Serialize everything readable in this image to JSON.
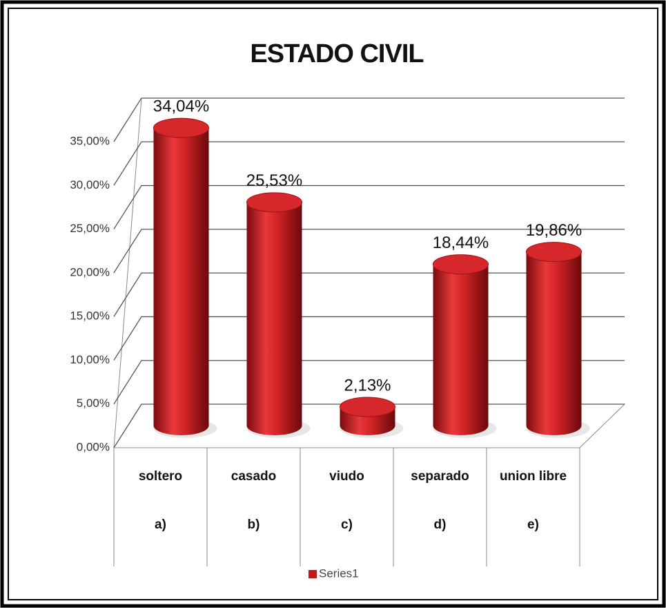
{
  "chart_data": {
    "type": "bar3d",
    "title": "ESTADO CIVIL",
    "categories": [
      "soltero",
      "casado",
      "viudo",
      "separado",
      "union libre"
    ],
    "category_codes": [
      "a)",
      "b)",
      "c)",
      "d)",
      "e)"
    ],
    "series": [
      {
        "name": "Series1",
        "color": "#c0181c",
        "values": [
          34.04,
          25.53,
          2.13,
          18.44,
          19.86
        ],
        "value_labels": [
          "34,04%",
          "25,53%",
          "2,13%",
          "18,44%",
          "19,86%"
        ]
      }
    ],
    "ylim": [
      0,
      35
    ],
    "yticks": [
      {
        "value": 0,
        "label": "0,00%"
      },
      {
        "value": 5,
        "label": "5,00%"
      },
      {
        "value": 10,
        "label": "10,00%"
      },
      {
        "value": 15,
        "label": "15,00%"
      },
      {
        "value": 20,
        "label": "20,00%"
      },
      {
        "value": 25,
        "label": "25,00%"
      },
      {
        "value": 30,
        "label": "30,00%"
      },
      {
        "value": 35,
        "label": "35,00%"
      }
    ],
    "grid": true,
    "legend": "bottom"
  }
}
